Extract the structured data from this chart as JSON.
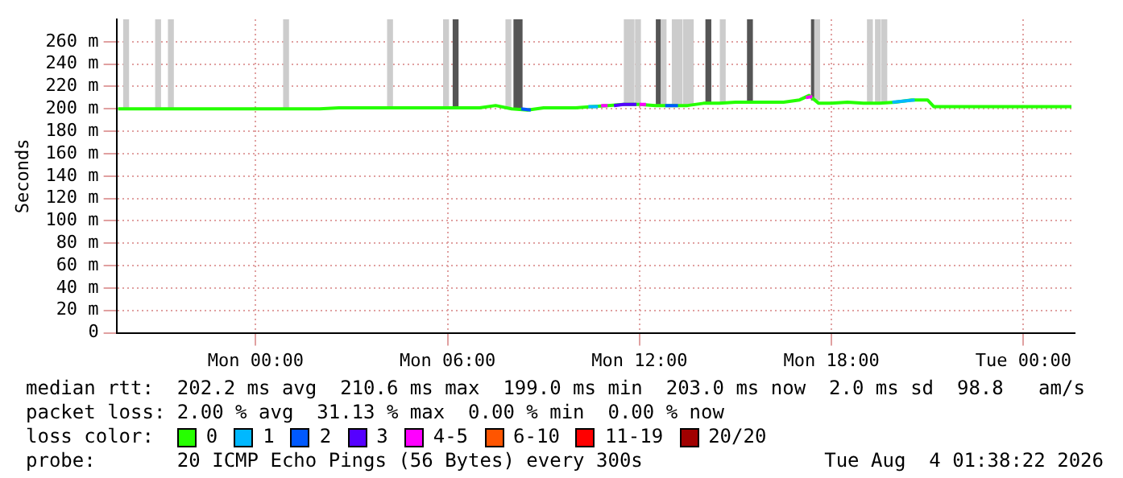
{
  "chart_data": {
    "type": "line",
    "ylabel": "Seconds",
    "legend_title": "loss color:",
    "legend": "bottom",
    "grid": true,
    "marker": "none",
    "xlim": [
      "2026-08-02T19:39",
      "2026-08-04T01:36"
    ],
    "xticks": [
      {
        "value": "2026-08-03T00:00",
        "label": "Mon 00:00"
      },
      {
        "value": "2026-08-03T06:00",
        "label": "Mon 06:00"
      },
      {
        "value": "2026-08-03T12:00",
        "label": "Mon 12:00"
      },
      {
        "value": "2026-08-03T18:00",
        "label": "Mon 18:00"
      },
      {
        "value": "2026-08-04T00:00",
        "label": "Tue 00:00"
      }
    ],
    "ylim": [
      0,
      280
    ],
    "yticks": [
      0,
      {
        "value": 20,
        "label": "20 m"
      },
      {
        "value": 40,
        "label": "40 m"
      },
      {
        "value": 60,
        "label": "60 m"
      },
      {
        "value": 80,
        "label": "80 m"
      },
      {
        "value": 100,
        "label": "100 m"
      },
      {
        "value": 120,
        "label": "120 m"
      },
      {
        "value": 140,
        "label": "140 m"
      },
      {
        "value": 160,
        "label": "160 m"
      },
      {
        "value": 180,
        "label": "180 m"
      },
      {
        "value": 200,
        "label": "200 m"
      },
      {
        "value": 220,
        "label": "220 m"
      },
      {
        "value": 240,
        "label": "240 m"
      },
      {
        "value": 260,
        "label": "260 m"
      }
    ],
    "series": [
      {
        "type": "bar",
        "x": [
          "2026-08-02T19:57",
          "2026-08-02T20:57",
          "2026-08-02T21:21",
          "2026-08-03T00:57",
          "2026-08-03T04:12",
          "2026-08-03T05:57",
          "2026-08-03T06:15",
          "2026-08-03T07:54",
          "2026-08-03T08:09",
          "2026-08-03T08:15",
          "2026-08-03T11:36",
          "2026-08-03T11:45",
          "2026-08-03T11:57",
          "2026-08-03T12:36",
          "2026-08-03T12:45",
          "2026-08-03T13:06",
          "2026-08-03T13:15",
          "2026-08-03T13:27",
          "2026-08-03T13:36",
          "2026-08-03T14:09",
          "2026-08-03T14:36",
          "2026-08-03T15:27",
          "2026-08-03T17:27",
          "2026-08-03T17:33",
          "2026-08-03T19:12",
          "2026-08-03T19:27",
          "2026-08-03T19:39"
        ],
        "base": [
          201,
          201,
          201,
          201,
          201,
          201,
          201,
          201,
          201,
          201,
          203,
          203,
          204,
          204,
          203,
          203,
          203,
          203,
          203,
          205,
          205,
          206,
          208,
          208,
          205,
          205,
          206
        ],
        "values": [
          79,
          79,
          79,
          79,
          79,
          79,
          79,
          79,
          79,
          79,
          77,
          77,
          76,
          76,
          77,
          77,
          77,
          77,
          77,
          75,
          75,
          74,
          72,
          72,
          75,
          75,
          74
        ],
        "colors": [
          "#cccccc",
          "#cccccc",
          "#cccccc",
          "#cccccc",
          "#cccccc",
          "#cccccc",
          "#555555",
          "#cccccc",
          "#555555",
          "#555555",
          "#cccccc",
          "#cccccc",
          "#cccccc",
          "#555555",
          "#cccccc",
          "#cccccc",
          "#cccccc",
          "#cccccc",
          "#cccccc",
          "#555555",
          "#cccccc",
          "#555555",
          "#555555",
          "#cccccc",
          "#cccccc",
          "#cccccc",
          "#cccccc"
        ]
      },
      {
        "name": "0",
        "color": "#26ff00",
        "x": [
          "2026-08-02T19:42",
          "2026-08-02T21:00",
          "2026-08-02T22:00",
          "2026-08-02T23:00",
          "2026-08-03T00:00",
          "2026-08-03T01:00",
          "2026-08-03T02:00",
          "2026-08-03T02:36",
          "2026-08-03T03:00",
          "2026-08-03T04:00",
          "2026-08-03T05:00",
          "2026-08-03T06:00",
          "2026-08-03T07:00",
          "2026-08-03T07:30",
          "2026-08-03T08:00",
          "2026-08-03T08:30",
          "2026-08-03T09:00",
          "2026-08-03T10:00",
          "2026-08-03T10:30",
          "2026-08-03T11:00",
          "2026-08-03T11:30",
          "2026-08-03T12:00",
          "2026-08-03T12:30",
          "2026-08-03T13:00",
          "2026-08-03T13:30",
          "2026-08-03T14:00",
          "2026-08-03T14:30",
          "2026-08-03T15:00",
          "2026-08-03T15:30",
          "2026-08-03T16:00",
          "2026-08-03T16:30",
          "2026-08-03T17:00",
          "2026-08-03T17:18",
          "2026-08-03T17:36",
          "2026-08-03T18:00",
          "2026-08-03T18:30",
          "2026-08-03T19:00",
          "2026-08-03T19:30",
          "2026-08-03T20:00",
          "2026-08-03T20:30",
          "2026-08-03T21:00",
          "2026-08-03T21:12",
          "2026-08-03T22:00",
          "2026-08-03T23:00",
          "2026-08-04T00:00",
          "2026-08-04T01:00",
          "2026-08-04T01:30"
        ],
        "values": [
          200,
          200,
          200,
          200,
          200,
          200,
          200,
          201,
          201,
          201,
          201,
          201,
          201,
          203,
          200,
          199,
          201,
          201,
          202,
          203,
          204,
          204,
          203,
          203,
          203,
          205,
          205,
          206,
          206,
          206,
          206,
          208,
          212,
          205,
          205,
          206,
          205,
          205,
          206,
          208,
          208,
          202,
          202,
          202,
          202,
          202,
          202
        ]
      },
      {
        "name": "1",
        "color": "#00b8ff",
        "x": [
          "2026-08-03T10:24",
          "2026-08-03T10:42",
          "2026-08-03T19:00",
          "2026-08-03T19:54",
          "2026-08-03T20:36"
        ],
        "values": [
          202,
          202,
          null,
          206,
          208
        ]
      },
      {
        "name": "2",
        "color": "#0059ff",
        "x": [
          "2026-08-03T08:18",
          "2026-08-03T08:36",
          "2026-08-03T10:00",
          "2026-08-03T12:48",
          "2026-08-03T13:12"
        ],
        "values": [
          200,
          199,
          null,
          203,
          203
        ]
      },
      {
        "name": "3",
        "color": "#5500ff",
        "x": [
          "2026-08-03T11:12",
          "2026-08-03T11:30",
          "2026-08-03T11:54"
        ],
        "values": [
          203,
          204,
          204
        ]
      },
      {
        "name": "4-5",
        "color": "#ff00ff",
        "x": [
          "2026-08-03T10:48",
          "2026-08-03T11:00",
          "2026-08-03T11:30",
          "2026-08-03T12:00",
          "2026-08-03T12:12",
          "2026-08-03T15:00",
          "2026-08-03T17:12",
          "2026-08-03T17:24"
        ],
        "values": [
          203,
          203,
          null,
          204,
          204,
          null,
          210,
          211
        ]
      },
      {
        "name": "6-10",
        "color": "#ff5500"
      },
      {
        "name": "11-19",
        "color": "#ff0000"
      },
      {
        "name": "20/20",
        "color": "#a10000"
      }
    ],
    "annotations": [
      "median rtt:  202.2 ms avg  210.6 ms max  199.0 ms min  203.0 ms now  2.0 ms sd  98.8   am/s",
      "packet loss: 2.00 % avg  31.13 % max  0.00 % min  0.00 % now",
      "probe:       20 ICMP Echo Pings (56 Bytes) every 300s",
      "Tue Aug  4 01:38:22 2026"
    ]
  }
}
